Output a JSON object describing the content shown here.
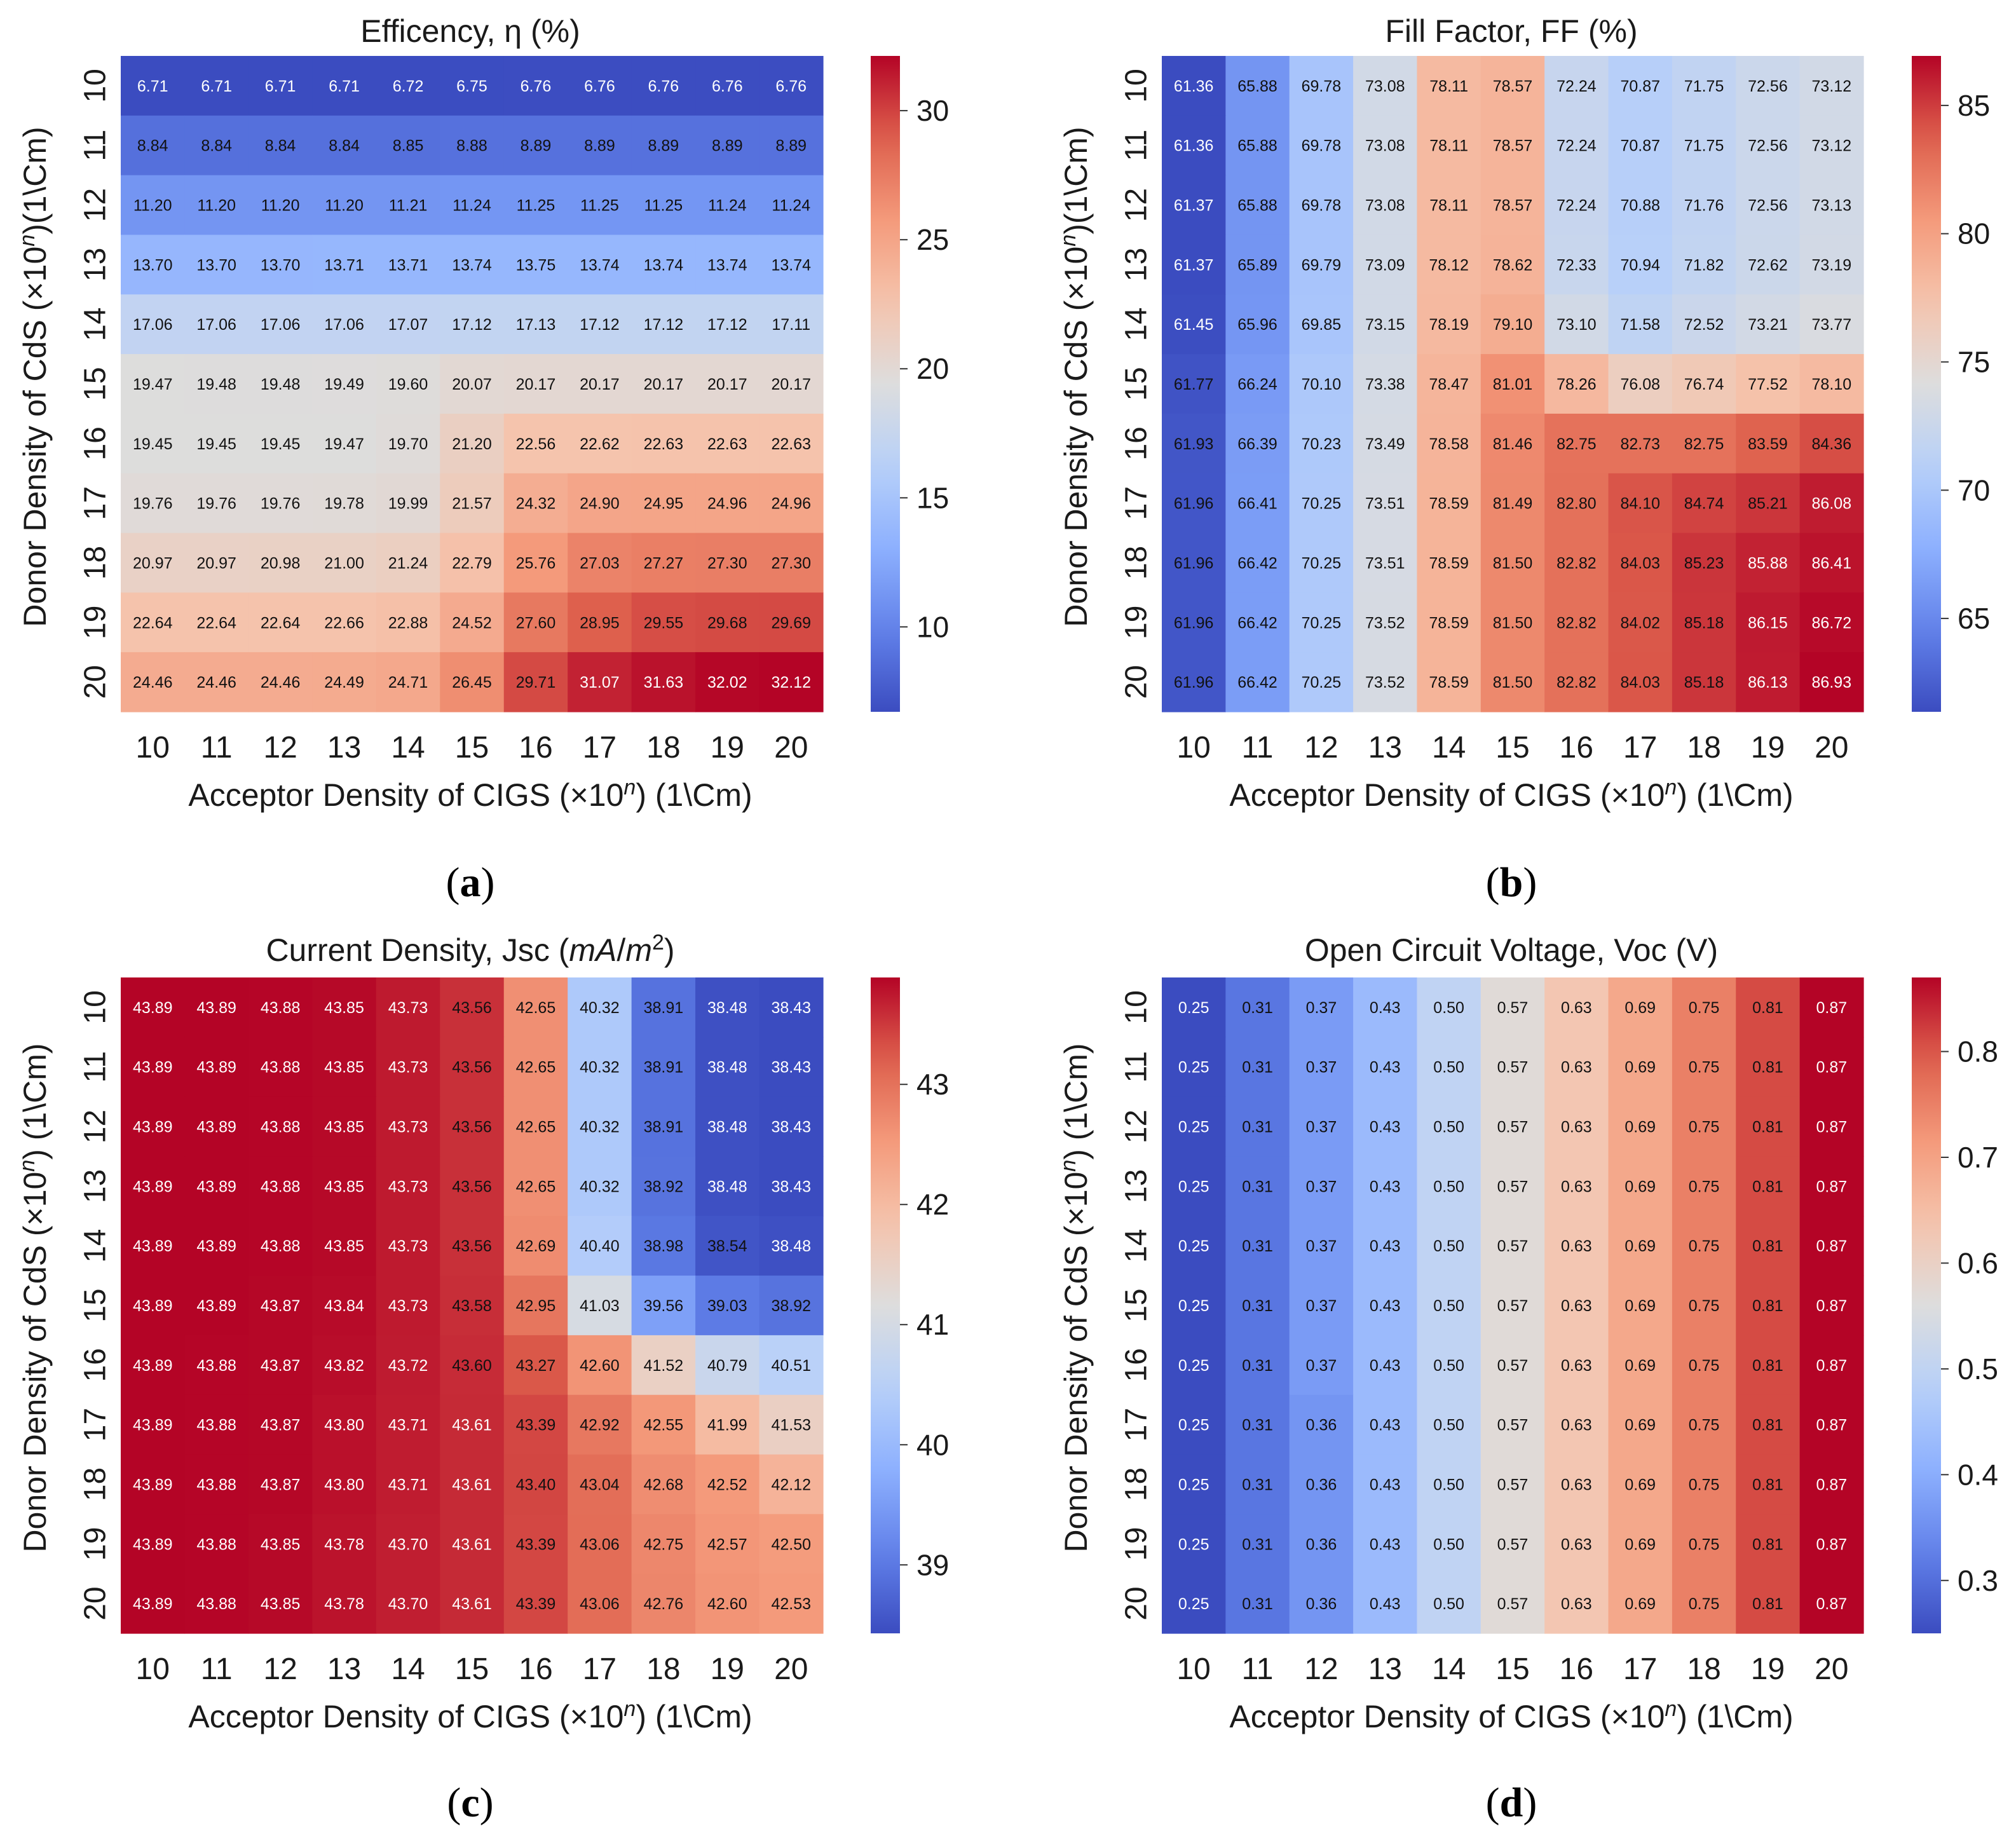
{
  "figure": {
    "captions": [
      "(a)",
      "(b)",
      "(c)",
      "(d)"
    ]
  },
  "chart_data": [
    {
      "type": "heatmap",
      "panel": "a",
      "title": "Efficency, η (%)",
      "xlabel": "Acceptor Density of CIGS (×10^n) (1\\Cm)",
      "ylabel": "Donor Density of CdS (×10^n)(1\\Cm)",
      "x_categories": [
        "10",
        "11",
        "12",
        "13",
        "14",
        "15",
        "16",
        "17",
        "18",
        "19",
        "20"
      ],
      "y_categories": [
        "10",
        "11",
        "12",
        "13",
        "14",
        "15",
        "16",
        "17",
        "18",
        "19",
        "20"
      ],
      "colormap": "coolwarm",
      "vmin": 6.71,
      "vmax": 32.12,
      "colorbar_ticks": [
        10,
        15,
        20,
        25,
        30
      ],
      "values": [
        [
          6.71,
          6.71,
          6.71,
          6.71,
          6.72,
          6.75,
          6.76,
          6.76,
          6.76,
          6.76,
          6.76
        ],
        [
          8.84,
          8.84,
          8.84,
          8.84,
          8.85,
          8.88,
          8.89,
          8.89,
          8.89,
          8.89,
          8.89
        ],
        [
          11.2,
          11.2,
          11.2,
          11.2,
          11.21,
          11.24,
          11.25,
          11.25,
          11.25,
          11.24,
          11.24
        ],
        [
          13.7,
          13.7,
          13.7,
          13.71,
          13.71,
          13.74,
          13.75,
          13.74,
          13.74,
          13.74,
          13.74
        ],
        [
          17.06,
          17.06,
          17.06,
          17.06,
          17.07,
          17.12,
          17.13,
          17.12,
          17.12,
          17.12,
          17.11
        ],
        [
          19.47,
          19.48,
          19.48,
          19.49,
          19.6,
          20.07,
          20.17,
          20.17,
          20.17,
          20.17,
          20.17
        ],
        [
          19.45,
          19.45,
          19.45,
          19.47,
          19.7,
          21.2,
          22.56,
          22.62,
          22.63,
          22.63,
          22.63
        ],
        [
          19.76,
          19.76,
          19.76,
          19.78,
          19.99,
          21.57,
          24.32,
          24.9,
          24.95,
          24.96,
          24.96
        ],
        [
          20.97,
          20.97,
          20.98,
          21.0,
          21.24,
          22.79,
          25.76,
          27.03,
          27.27,
          27.3,
          27.3
        ],
        [
          22.64,
          22.64,
          22.64,
          22.66,
          22.88,
          24.52,
          27.6,
          28.95,
          29.55,
          29.68,
          29.69
        ],
        [
          24.46,
          24.46,
          24.46,
          24.49,
          24.71,
          26.45,
          29.71,
          31.07,
          31.63,
          32.02,
          32.12
        ]
      ]
    },
    {
      "type": "heatmap",
      "panel": "b",
      "title": "Fill Factor, FF (%)",
      "xlabel": "Acceptor Density of CIGS (×10^n) (1\\Cm)",
      "ylabel": "Donor Density of CdS (×10^n)(1\\Cm)",
      "x_categories": [
        "10",
        "11",
        "12",
        "13",
        "14",
        "15",
        "16",
        "17",
        "18",
        "19",
        "20"
      ],
      "y_categories": [
        "10",
        "11",
        "12",
        "13",
        "14",
        "15",
        "16",
        "17",
        "18",
        "19",
        "20"
      ],
      "colormap": "coolwarm",
      "vmin": 61.36,
      "vmax": 86.93,
      "colorbar_ticks": [
        65,
        70,
        75,
        80,
        85
      ],
      "values": [
        [
          61.36,
          65.88,
          69.78,
          73.08,
          78.11,
          78.57,
          72.24,
          70.87,
          71.75,
          72.56,
          73.12
        ],
        [
          61.36,
          65.88,
          69.78,
          73.08,
          78.11,
          78.57,
          72.24,
          70.87,
          71.75,
          72.56,
          73.12
        ],
        [
          61.37,
          65.88,
          69.78,
          73.08,
          78.11,
          78.57,
          72.24,
          70.88,
          71.76,
          72.56,
          73.13
        ],
        [
          61.37,
          65.89,
          69.79,
          73.09,
          78.12,
          78.62,
          72.33,
          70.94,
          71.82,
          72.62,
          73.19
        ],
        [
          61.45,
          65.96,
          69.85,
          73.15,
          78.19,
          79.1,
          73.1,
          71.58,
          72.52,
          73.21,
          73.77
        ],
        [
          61.77,
          66.24,
          70.1,
          73.38,
          78.47,
          81.01,
          78.26,
          76.08,
          76.74,
          77.52,
          78.1
        ],
        [
          61.93,
          66.39,
          70.23,
          73.49,
          78.58,
          81.46,
          82.75,
          82.73,
          82.75,
          83.59,
          84.36
        ],
        [
          61.96,
          66.41,
          70.25,
          73.51,
          78.59,
          81.49,
          82.8,
          84.1,
          84.74,
          85.21,
          86.08
        ],
        [
          61.96,
          66.42,
          70.25,
          73.51,
          78.59,
          81.5,
          82.82,
          84.03,
          85.23,
          85.88,
          86.41
        ],
        [
          61.96,
          66.42,
          70.25,
          73.52,
          78.59,
          81.5,
          82.82,
          84.02,
          85.18,
          86.15,
          86.72
        ],
        [
          61.96,
          66.42,
          70.25,
          73.52,
          78.59,
          81.5,
          82.82,
          84.03,
          85.18,
          86.13,
          86.93
        ]
      ]
    },
    {
      "type": "heatmap",
      "panel": "c",
      "title": "Current Density, Jsc (mA/m^2)",
      "xlabel": "Acceptor Density of CIGS (×10^n) (1\\Cm)",
      "ylabel": "Donor Density of CdS (×10^n) (1\\Cm)",
      "x_categories": [
        "10",
        "11",
        "12",
        "13",
        "14",
        "15",
        "16",
        "17",
        "18",
        "19",
        "20"
      ],
      "y_categories": [
        "10",
        "11",
        "12",
        "13",
        "14",
        "15",
        "16",
        "17",
        "18",
        "19",
        "20"
      ],
      "colormap": "coolwarm",
      "vmin": 38.43,
      "vmax": 43.89,
      "colorbar_ticks": [
        39,
        40,
        41,
        42,
        43
      ],
      "values": [
        [
          43.89,
          43.89,
          43.88,
          43.85,
          43.73,
          43.56,
          42.65,
          40.32,
          38.91,
          38.48,
          38.43
        ],
        [
          43.89,
          43.89,
          43.88,
          43.85,
          43.73,
          43.56,
          42.65,
          40.32,
          38.91,
          38.48,
          38.43
        ],
        [
          43.89,
          43.89,
          43.88,
          43.85,
          43.73,
          43.56,
          42.65,
          40.32,
          38.91,
          38.48,
          38.43
        ],
        [
          43.89,
          43.89,
          43.88,
          43.85,
          43.73,
          43.56,
          42.65,
          40.32,
          38.92,
          38.48,
          38.43
        ],
        [
          43.89,
          43.89,
          43.88,
          43.85,
          43.73,
          43.56,
          42.69,
          40.4,
          38.98,
          38.54,
          38.48
        ],
        [
          43.89,
          43.89,
          43.87,
          43.84,
          43.73,
          43.58,
          42.95,
          41.03,
          39.56,
          39.03,
          38.92
        ],
        [
          43.89,
          43.88,
          43.87,
          43.82,
          43.72,
          43.6,
          43.27,
          42.6,
          41.52,
          40.79,
          40.51
        ],
        [
          43.89,
          43.88,
          43.87,
          43.8,
          43.71,
          43.61,
          43.39,
          42.92,
          42.55,
          41.99,
          41.53
        ],
        [
          43.89,
          43.88,
          43.87,
          43.8,
          43.71,
          43.61,
          43.4,
          43.04,
          42.68,
          42.52,
          42.12
        ],
        [
          43.89,
          43.88,
          43.85,
          43.78,
          43.7,
          43.61,
          43.39,
          43.06,
          42.75,
          42.57,
          42.5
        ],
        [
          43.89,
          43.88,
          43.85,
          43.78,
          43.7,
          43.61,
          43.39,
          43.06,
          42.76,
          42.6,
          42.53
        ]
      ]
    },
    {
      "type": "heatmap",
      "panel": "d",
      "title": "Open Circuit Voltage, Voc (V)",
      "xlabel": "Acceptor Density of CIGS (×10^n) (1\\Cm)",
      "ylabel": "Donor Density of CdS (×10^n) (1\\Cm)",
      "x_categories": [
        "10",
        "11",
        "12",
        "13",
        "14",
        "15",
        "16",
        "17",
        "18",
        "19",
        "20"
      ],
      "y_categories": [
        "10",
        "11",
        "12",
        "13",
        "14",
        "15",
        "16",
        "17",
        "18",
        "19",
        "20"
      ],
      "colormap": "coolwarm",
      "vmin": 0.25,
      "vmax": 0.87,
      "colorbar_ticks": [
        0.3,
        0.4,
        0.5,
        0.6,
        0.7,
        0.8
      ],
      "values": [
        [
          0.25,
          0.31,
          0.37,
          0.43,
          0.5,
          0.57,
          0.63,
          0.69,
          0.75,
          0.81,
          0.87
        ],
        [
          0.25,
          0.31,
          0.37,
          0.43,
          0.5,
          0.57,
          0.63,
          0.69,
          0.75,
          0.81,
          0.87
        ],
        [
          0.25,
          0.31,
          0.37,
          0.43,
          0.5,
          0.57,
          0.63,
          0.69,
          0.75,
          0.81,
          0.87
        ],
        [
          0.25,
          0.31,
          0.37,
          0.43,
          0.5,
          0.57,
          0.63,
          0.69,
          0.75,
          0.81,
          0.87
        ],
        [
          0.25,
          0.31,
          0.37,
          0.43,
          0.5,
          0.57,
          0.63,
          0.69,
          0.75,
          0.81,
          0.87
        ],
        [
          0.25,
          0.31,
          0.37,
          0.43,
          0.5,
          0.57,
          0.63,
          0.69,
          0.75,
          0.81,
          0.87
        ],
        [
          0.25,
          0.31,
          0.37,
          0.43,
          0.5,
          0.57,
          0.63,
          0.69,
          0.75,
          0.81,
          0.87
        ],
        [
          0.25,
          0.31,
          0.36,
          0.43,
          0.5,
          0.57,
          0.63,
          0.69,
          0.75,
          0.81,
          0.87
        ],
        [
          0.25,
          0.31,
          0.36,
          0.43,
          0.5,
          0.57,
          0.63,
          0.69,
          0.75,
          0.81,
          0.87
        ],
        [
          0.25,
          0.31,
          0.36,
          0.43,
          0.5,
          0.57,
          0.63,
          0.69,
          0.75,
          0.81,
          0.87
        ],
        [
          0.25,
          0.31,
          0.36,
          0.43,
          0.5,
          0.57,
          0.63,
          0.69,
          0.75,
          0.81,
          0.87
        ]
      ]
    }
  ]
}
